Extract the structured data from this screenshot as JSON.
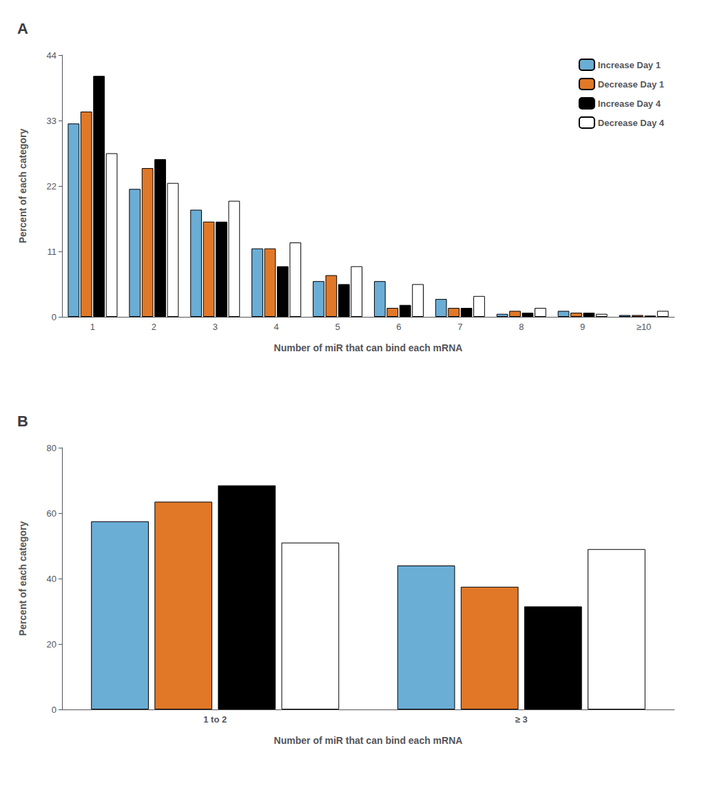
{
  "chart_data": [
    {
      "type": "bar",
      "title": "A",
      "xlabel": "Number of miR that can bind each mRNA",
      "ylabel": "Percent of each category",
      "categories": [
        "1",
        "2",
        "3",
        "4",
        "5",
        "6",
        "7",
        "8",
        "9",
        "≥10"
      ],
      "series": [
        {
          "name": "Increase Day 1",
          "color": "#6aadd5",
          "values": [
            32.5,
            21.5,
            18.0,
            11.5,
            6.0,
            6.0,
            3.0,
            0.5,
            1.0,
            0.3
          ]
        },
        {
          "name": "Decrease Day 1",
          "color": "#e07828",
          "values": [
            34.5,
            25.0,
            16.0,
            11.5,
            7.0,
            1.5,
            1.5,
            1.0,
            0.7,
            0.3
          ]
        },
        {
          "name": "Increase Day 4",
          "color": "#000000",
          "values": [
            40.5,
            26.5,
            16.0,
            8.5,
            5.5,
            2.0,
            1.5,
            0.7,
            0.7,
            0.2
          ]
        },
        {
          "name": "Decrease Day 4",
          "color": "#ffffff",
          "values": [
            27.5,
            22.5,
            19.5,
            12.5,
            8.5,
            5.5,
            3.5,
            1.5,
            0.5,
            1.0
          ]
        }
      ],
      "ylim": [
        0,
        44
      ],
      "yticks": [
        0,
        11,
        22,
        33,
        44
      ],
      "grid": false,
      "legend": "upper right"
    },
    {
      "type": "bar",
      "title": "B",
      "xlabel": "Number of miR that can bind each mRNA",
      "ylabel": "Percent of each category",
      "categories": [
        "1 to 2",
        "≥ 3"
      ],
      "series": [
        {
          "name": "Increase Day 1",
          "color": "#6aadd5",
          "values": [
            57.5,
            44.0
          ]
        },
        {
          "name": "Decrease Day 1",
          "color": "#e07828",
          "values": [
            63.5,
            37.5
          ]
        },
        {
          "name": "Increase Day 4",
          "color": "#000000",
          "values": [
            68.5,
            31.5
          ]
        },
        {
          "name": "Decrease Day 4",
          "color": "#ffffff",
          "values": [
            51.0,
            49.0
          ]
        }
      ],
      "ylim": [
        0,
        80
      ],
      "yticks": [
        0,
        20,
        40,
        60,
        80
      ],
      "grid": false
    }
  ]
}
